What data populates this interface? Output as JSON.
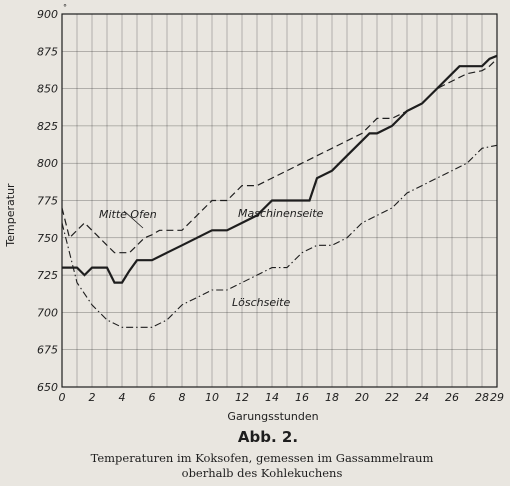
{
  "chart_data": {
    "type": "line",
    "xlabel": "Garungsstunden",
    "ylabel": "Temperatur",
    "y_unit": "°",
    "xlim": [
      0,
      29
    ],
    "ylim": [
      650,
      900
    ],
    "x_ticks": [
      0,
      2,
      4,
      6,
      8,
      10,
      12,
      14,
      16,
      18,
      20,
      22,
      24,
      26,
      28,
      29
    ],
    "y_ticks": [
      650,
      675,
      700,
      725,
      750,
      775,
      800,
      825,
      850,
      875,
      900
    ],
    "grid": true,
    "series": [
      {
        "name": "Mitte Ofen",
        "style": "dashed",
        "points": [
          [
            0,
            770
          ],
          [
            0.5,
            750
          ],
          [
            1,
            755
          ],
          [
            1.5,
            760
          ],
          [
            2,
            755
          ],
          [
            3,
            745
          ],
          [
            3.5,
            740
          ],
          [
            4.5,
            740
          ],
          [
            5,
            745
          ],
          [
            5.5,
            750
          ],
          [
            6,
            752
          ],
          [
            6.5,
            755
          ],
          [
            7,
            755
          ],
          [
            8,
            755
          ],
          [
            9,
            765
          ],
          [
            10,
            775
          ],
          [
            11,
            775
          ],
          [
            12,
            785
          ],
          [
            13,
            785
          ],
          [
            14,
            790
          ],
          [
            15,
            795
          ],
          [
            16,
            800
          ],
          [
            17,
            805
          ],
          [
            18,
            810
          ],
          [
            19,
            815
          ],
          [
            20,
            820
          ],
          [
            21,
            830
          ],
          [
            22,
            830
          ],
          [
            23,
            835
          ],
          [
            24,
            840
          ],
          [
            25,
            850
          ],
          [
            26,
            855
          ],
          [
            27,
            860
          ],
          [
            28,
            862
          ],
          [
            28.5,
            865
          ],
          [
            29,
            870
          ]
        ]
      },
      {
        "name": "Maschinenseite",
        "style": "solid",
        "points": [
          [
            0,
            730
          ],
          [
            1,
            730
          ],
          [
            1.5,
            725
          ],
          [
            2,
            730
          ],
          [
            3,
            730
          ],
          [
            3.5,
            720
          ],
          [
            4,
            720
          ],
          [
            4.5,
            728
          ],
          [
            5,
            735
          ],
          [
            6,
            735
          ],
          [
            7,
            740
          ],
          [
            8,
            745
          ],
          [
            9,
            750
          ],
          [
            10,
            755
          ],
          [
            11,
            755
          ],
          [
            12,
            760
          ],
          [
            13,
            765
          ],
          [
            14,
            775
          ],
          [
            15,
            775
          ],
          [
            16,
            775
          ],
          [
            16.5,
            775
          ],
          [
            17,
            790
          ],
          [
            18,
            795
          ],
          [
            19,
            805
          ],
          [
            20,
            815
          ],
          [
            20.5,
            820
          ],
          [
            21,
            820
          ],
          [
            22,
            825
          ],
          [
            23,
            835
          ],
          [
            24,
            840
          ],
          [
            25,
            850
          ],
          [
            26,
            860
          ],
          [
            26.5,
            865
          ],
          [
            28,
            865
          ],
          [
            28.5,
            870
          ],
          [
            29,
            872
          ]
        ]
      },
      {
        "name": "Löschseite",
        "style": "dashdot",
        "points": [
          [
            0,
            760
          ],
          [
            0.5,
            740
          ],
          [
            1,
            720
          ],
          [
            2,
            705
          ],
          [
            3,
            695
          ],
          [
            4,
            690
          ],
          [
            5,
            690
          ],
          [
            6,
            690
          ],
          [
            7,
            695
          ],
          [
            8,
            705
          ],
          [
            9,
            710
          ],
          [
            10,
            715
          ],
          [
            11,
            715
          ],
          [
            12,
            720
          ],
          [
            13,
            725
          ],
          [
            14,
            730
          ],
          [
            15,
            730
          ],
          [
            16,
            740
          ],
          [
            17,
            745
          ],
          [
            18,
            745
          ],
          [
            19,
            750
          ],
          [
            20,
            760
          ],
          [
            21,
            765
          ],
          [
            22,
            770
          ],
          [
            23,
            780
          ],
          [
            24,
            785
          ],
          [
            25,
            790
          ],
          [
            26,
            795
          ],
          [
            27,
            800
          ],
          [
            28,
            810
          ],
          [
            29,
            812
          ]
        ]
      }
    ]
  },
  "figure": {
    "number": "Abb. 2.",
    "caption_line1": "Temperaturen im Koksofen, gemessen im Gassammelraum",
    "caption_line2": "oberhalb des Kohlekuchens"
  },
  "colors": {
    "ink": "#1e1e1e",
    "paper": "#e9e6e0"
  }
}
